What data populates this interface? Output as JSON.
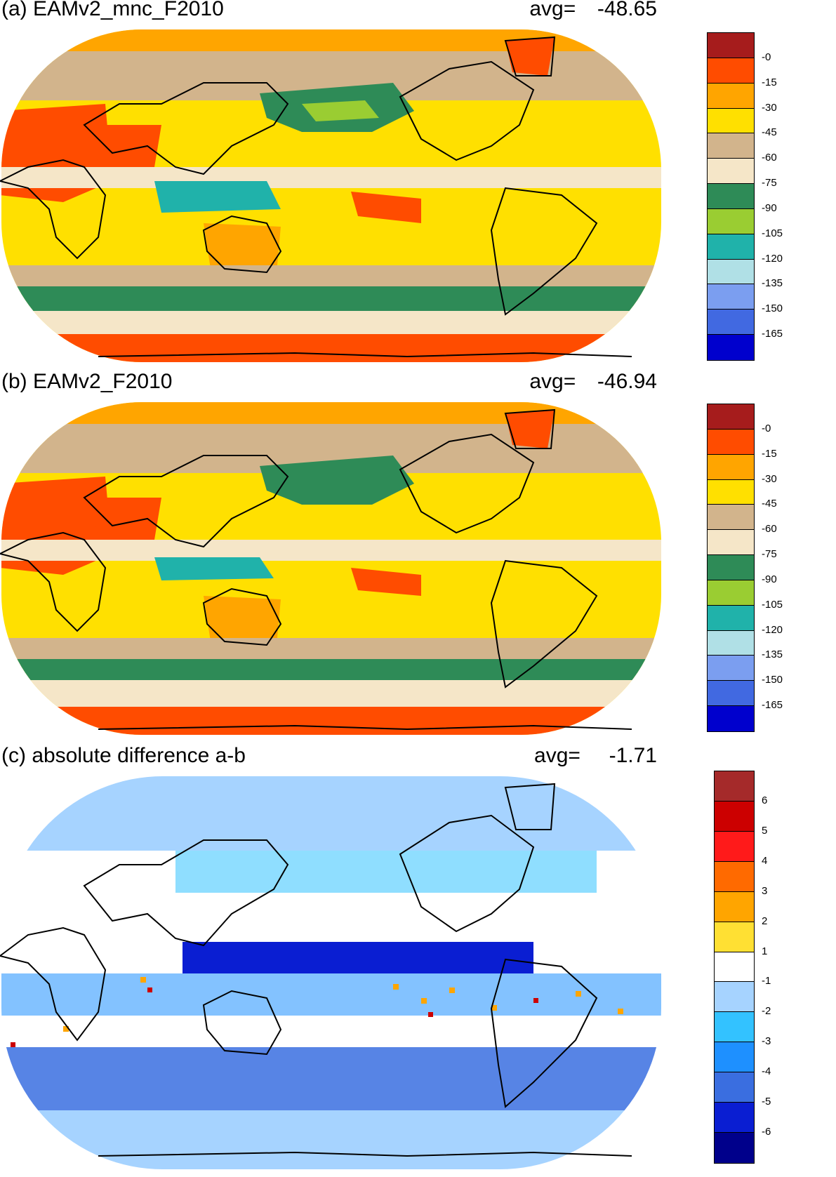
{
  "panels": [
    {
      "title": "(a) EAMv2_mnc_F2010",
      "avg_label": "avg=",
      "avg_value": "-48.65",
      "colorbar": {
        "colors": [
          "#a61c1c",
          "#ff4c00",
          "#ffa500",
          "#ffe000",
          "#d2b48c",
          "#f5e6c8",
          "#2e8b57",
          "#9acd32",
          "#20b2aa",
          "#b0e0e6",
          "#7b9ef0",
          "#4169e1",
          "#0000cd"
        ],
        "ticks": [
          "-0",
          "-15",
          "-30",
          "-45",
          "-60",
          "-75",
          "-90",
          "-105",
          "-120",
          "-135",
          "-150",
          "-165"
        ]
      }
    },
    {
      "title": "(b) EAMv2_F2010",
      "avg_label": "avg=",
      "avg_value": "-46.94",
      "colorbar": {
        "colors": [
          "#a61c1c",
          "#ff4c00",
          "#ffa500",
          "#ffe000",
          "#d2b48c",
          "#f5e6c8",
          "#2e8b57",
          "#9acd32",
          "#20b2aa",
          "#b0e0e6",
          "#7b9ef0",
          "#4169e1",
          "#0000cd"
        ],
        "ticks": [
          "-0",
          "-15",
          "-30",
          "-45",
          "-60",
          "-75",
          "-90",
          "-105",
          "-120",
          "-135",
          "-150",
          "-165"
        ]
      }
    },
    {
      "title": "(c) absolute difference a-b",
      "avg_label": "avg=",
      "avg_value": "-1.71",
      "colorbar": {
        "colors": [
          "#a52a2a",
          "#cc0000",
          "#ff1a1a",
          "#ff6a00",
          "#ffa500",
          "#ffe033",
          "#ffffff",
          "#a6d3ff",
          "#33c2ff",
          "#1e90ff",
          "#3a6ee0",
          "#0a1ed2",
          "#00008b"
        ],
        "ticks": [
          "6",
          "5",
          "4",
          "3",
          "2",
          "1",
          "-1",
          "-2",
          "-3",
          "-4",
          "-5",
          "-6"
        ]
      }
    }
  ]
}
